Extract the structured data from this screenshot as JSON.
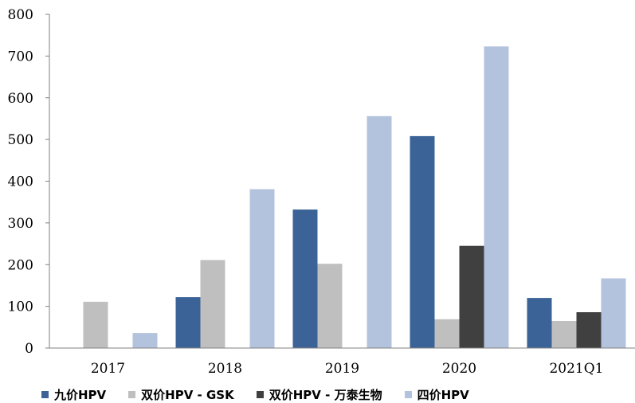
{
  "chart_data": {
    "type": "bar",
    "categories": [
      "2017",
      "2018",
      "2019",
      "2020",
      "2021Q1"
    ],
    "series": [
      {
        "name": "九价HPV",
        "color": "#3b6397",
        "values": [
          null,
          122,
          332,
          508,
          120
        ]
      },
      {
        "name": "双价HPV - GSK",
        "color": "#bfbfbf",
        "values": [
          111,
          211,
          202,
          69,
          65
        ]
      },
      {
        "name": "双价HPV - 万泰生物",
        "color": "#404040",
        "values": [
          null,
          null,
          null,
          245,
          86
        ]
      },
      {
        "name": "四价HPV",
        "color": "#b4c3dd",
        "values": [
          36,
          381,
          556,
          723,
          167
        ]
      }
    ],
    "ylim": [
      0,
      800
    ],
    "yticks": [
      "0",
      "100",
      "200",
      "300",
      "400",
      "500",
      "600",
      "700",
      "800"
    ],
    "legend_position": "bottom",
    "grid": false,
    "title": "",
    "xlabel": "",
    "ylabel": ""
  }
}
